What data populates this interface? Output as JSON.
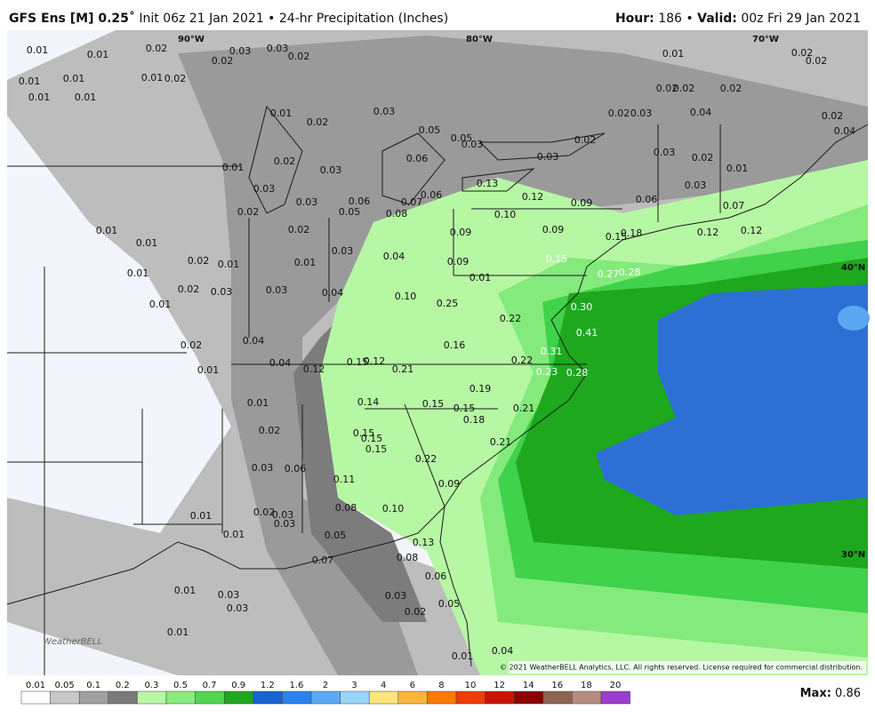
{
  "header": {
    "model": "GFS Ens [M] 0.25˚",
    "run": "Init 06z 21 Jan 2021 • 24-hr Precipitation (Inches)",
    "hour_label": "Hour:",
    "hour": "186",
    "sep": "•",
    "valid_label": "Valid:",
    "valid": "00z Fri 29 Jan 2021"
  },
  "coords": [
    "90°W",
    "80°W",
    "70°W",
    "40°N",
    "30°N"
  ],
  "copyright": "© 2021 WeatherBELL Analytics, LLC. All rights reserved. License required for commercial distribution.",
  "logo": "WeatherBELL",
  "map_labels": [
    "0.01",
    "0.01",
    "0.02",
    "0.03",
    "0.03",
    "0.02",
    "0.02",
    "0.01",
    "0.01",
    "0.01",
    "0.01",
    "0.01",
    "0.02",
    "0.01",
    "0.02",
    "0.03",
    "0.05",
    "0.05",
    "0.03",
    "0.01",
    "0.02",
    "0.03",
    "0.06",
    "0.03",
    "0.03",
    "0.06",
    "0.07",
    "0.06",
    "0.05",
    "0.08",
    "0.02",
    "0.12",
    "0.09",
    "0.10",
    "0.13",
    "0.09",
    "0.09",
    "0.09",
    "0.15",
    "0.02",
    "0.03",
    "0.04",
    "0.01",
    "0.01",
    "0.02",
    "0.01",
    "0.01",
    "0.02",
    "0.03",
    "0.03",
    "0.01",
    "0.04",
    "0.10",
    "0.01",
    "0.25",
    "0.22",
    "0.27",
    "0.28",
    "0.30",
    "0.41",
    "0.31",
    "0.01",
    "0.04",
    "0.16",
    "0.02",
    "0.01",
    "0.04",
    "0.12",
    "0.15",
    "0.12",
    "0.21",
    "0.22",
    "0.23",
    "0.28",
    "0.19",
    "0.01",
    "0.14",
    "0.15",
    "0.15",
    "0.18",
    "0.21",
    "0.02",
    "0.15",
    "0.15",
    "0.15",
    "0.21",
    "0.03",
    "0.06",
    "0.22",
    "0.11",
    "0.09",
    "0.08",
    "0.10",
    "0.01",
    "0.02",
    "0.03",
    "0.03",
    "0.01",
    "0.05",
    "0.13",
    "0.07",
    "0.08",
    "0.06",
    "0.01",
    "0.03",
    "0.03",
    "0.03",
    "0.02",
    "0.05",
    "0.01",
    "0.01",
    "0.04",
    "0.01",
    "0.02",
    "0.02",
    "0.02",
    "0.02",
    "0.02",
    "0.02",
    "0.03",
    "0.04",
    "0.02",
    "0.04",
    "0.02",
    "0.03",
    "0.03",
    "0.02",
    "0.01",
    "0.03",
    "0.06",
    "0.07",
    "0.15",
    "0.18",
    "0.12",
    "0.12"
  ],
  "legend": {
    "labels": [
      "0.01",
      "0.05",
      "0.1",
      "0.2",
      "0.3",
      "0.5",
      "0.7",
      "0.9",
      "1.2",
      "1.6",
      "2",
      "3",
      "4",
      "6",
      "8",
      "10",
      "12",
      "14",
      "16",
      "18",
      "20"
    ],
    "colors": [
      "#ffffff",
      "#c8c8c8",
      "#a0a0a0",
      "#7a7a7a",
      "#b8f7a6",
      "#8aec7c",
      "#4fd84f",
      "#1ea81e",
      "#1464d2",
      "#2a84f0",
      "#58aaf5",
      "#9ad4fa",
      "#ffe57a",
      "#ffb43c",
      "#ff7a00",
      "#f03c00",
      "#c81400",
      "#8c0000",
      "#8c6450",
      "#b48c82",
      "#9c3cd2"
    ],
    "max_label": "Max:",
    "max": "0.86"
  }
}
